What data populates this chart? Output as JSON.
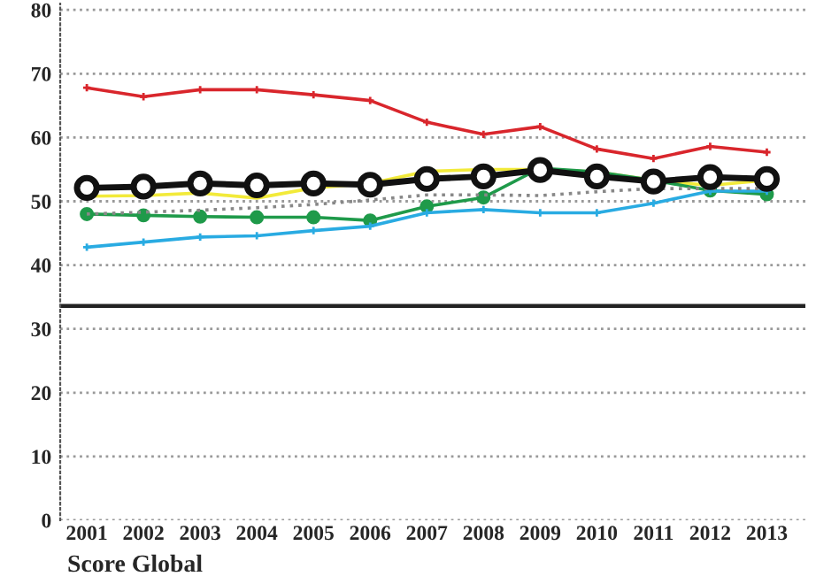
{
  "chart_data": {
    "type": "line",
    "categories": [
      "2001",
      "2002",
      "2003",
      "2004",
      "2005",
      "2006",
      "2007",
      "2008",
      "2009",
      "2010",
      "2011",
      "2012",
      "2013"
    ],
    "series": [
      {
        "color": "#d9262c",
        "marker": "cross",
        "line_style": "solid",
        "values": [
          67.8,
          66.4,
          67.5,
          67.5,
          66.7,
          65.8,
          62.4,
          60.5,
          61.7,
          58.2,
          56.7,
          58.6,
          57.7
        ]
      },
      {
        "color": "#f2ea3a",
        "marker": "none",
        "line_style": "solid",
        "values": [
          50.8,
          50.9,
          51.3,
          50.5,
          52.1,
          52.8,
          54.7,
          55.0,
          55.0,
          54.6,
          53.3,
          52.5,
          53.3
        ]
      },
      {
        "color": "#1f9a4a",
        "marker": "circle",
        "line_style": "solid",
        "values": [
          48.0,
          47.8,
          47.6,
          47.5,
          47.5,
          47.0,
          49.2,
          50.6,
          55.2,
          54.6,
          53.3,
          51.7,
          51.1
        ]
      },
      {
        "color": "#29abe2",
        "marker": "cross",
        "line_style": "solid",
        "values": [
          42.8,
          43.6,
          44.4,
          44.6,
          45.4,
          46.1,
          48.2,
          48.7,
          48.2,
          48.2,
          49.7,
          51.6,
          51.6
        ]
      },
      {
        "color": "#888888",
        "marker": "none",
        "line_style": "dotted",
        "values": [
          48.0,
          48.3,
          48.6,
          49.0,
          49.5,
          50.2,
          51.0,
          51.0,
          50.9,
          51.5,
          52.0,
          52.0,
          52.0
        ]
      },
      {
        "color": "#111111",
        "marker": "circle",
        "line_style": "solid",
        "values": [
          52.1,
          52.3,
          52.8,
          52.5,
          52.8,
          52.6,
          53.5,
          53.9,
          54.9,
          53.9,
          53.1,
          53.8,
          53.5
        ]
      }
    ],
    "ylim": [
      0,
      81
    ],
    "yticks": [
      0,
      10,
      20,
      30,
      40,
      50,
      60,
      70,
      80
    ],
    "grid": "y",
    "ref_lines": [
      {
        "axis": "y",
        "value": 33.6,
        "color": "#222222",
        "line_style": "solid"
      }
    ],
    "annotations": [
      "Score Global"
    ]
  }
}
